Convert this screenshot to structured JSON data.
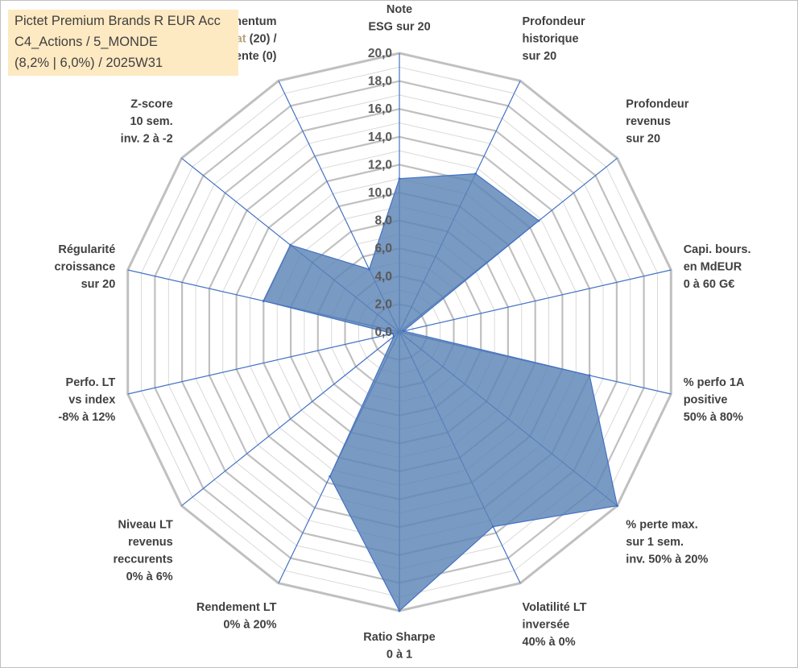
{
  "title": {
    "line1": "Pictet Premium Brands R EUR Acc",
    "line2": "C4_Actions / 5_MONDE",
    "line3": "(8,2% | 6,0%) / 2025W31"
  },
  "colors": {
    "fill": "#5b84b6",
    "stroke": "#4472c4",
    "grid_major": "#c0c0c0",
    "grid_minor": "#d9d9d9",
    "momentum_buy": "#b8a27a"
  },
  "chart_data": {
    "type": "radar",
    "rmin": 0,
    "rmax": 20,
    "major_step": 2,
    "grid": true,
    "tick_labels": [
      "0,0",
      "2,0",
      "4,0",
      "6,0",
      "8,0",
      "10,0",
      "12,0",
      "14,0",
      "16,0",
      "18,0",
      "20,0"
    ],
    "axes": [
      {
        "lines": [
          "Note",
          "ESG sur 20"
        ],
        "value": 11.0
      },
      {
        "lines": [
          "Profondeur",
          "historique",
          "sur 20"
        ],
        "value": 12.6
      },
      {
        "lines": [
          "Profondeur",
          "revenus",
          "sur 20"
        ],
        "value": 12.8
      },
      {
        "lines": [
          "Capi. bours.",
          "en MdEUR",
          "0 à 60 G€"
        ],
        "value": 0.3
      },
      {
        "lines": [
          "% perfo 1A",
          "positive",
          "50% à 80%"
        ],
        "value": 14.0
      },
      {
        "lines": [
          "% perte max.",
          "sur 1 sem.",
          "inv. 50% à 20%"
        ],
        "value": 20.0
      },
      {
        "lines": [
          "Volatilité LT",
          "inversée",
          "40% à 0%"
        ],
        "value": 15.5
      },
      {
        "lines": [
          "Ratio Sharpe",
          "0 à 1"
        ],
        "value": 20.0
      },
      {
        "lines": [
          "Rendement LT",
          "0% à 20%"
        ],
        "value": 11.5
      },
      {
        "lines": [
          "Niveau LT",
          "revenus",
          "reccurents",
          "0% à 6%"
        ],
        "value": 0.5
      },
      {
        "lines": [
          "Perfo. LT",
          "vs index",
          "-8% à 12%"
        ],
        "value": 0.5
      },
      {
        "lines": [
          "Régularité",
          "croissance",
          "sur 20"
        ],
        "value": 10.0
      },
      {
        "lines": [
          "Z-score",
          "10 sem.",
          "inv. 2 à -2"
        ],
        "value": 10.0
      },
      {
        "lines": [
          "Momentum",
          "Achat (20) /",
          "Vente (0)"
        ],
        "value": 5.0
      }
    ]
  }
}
